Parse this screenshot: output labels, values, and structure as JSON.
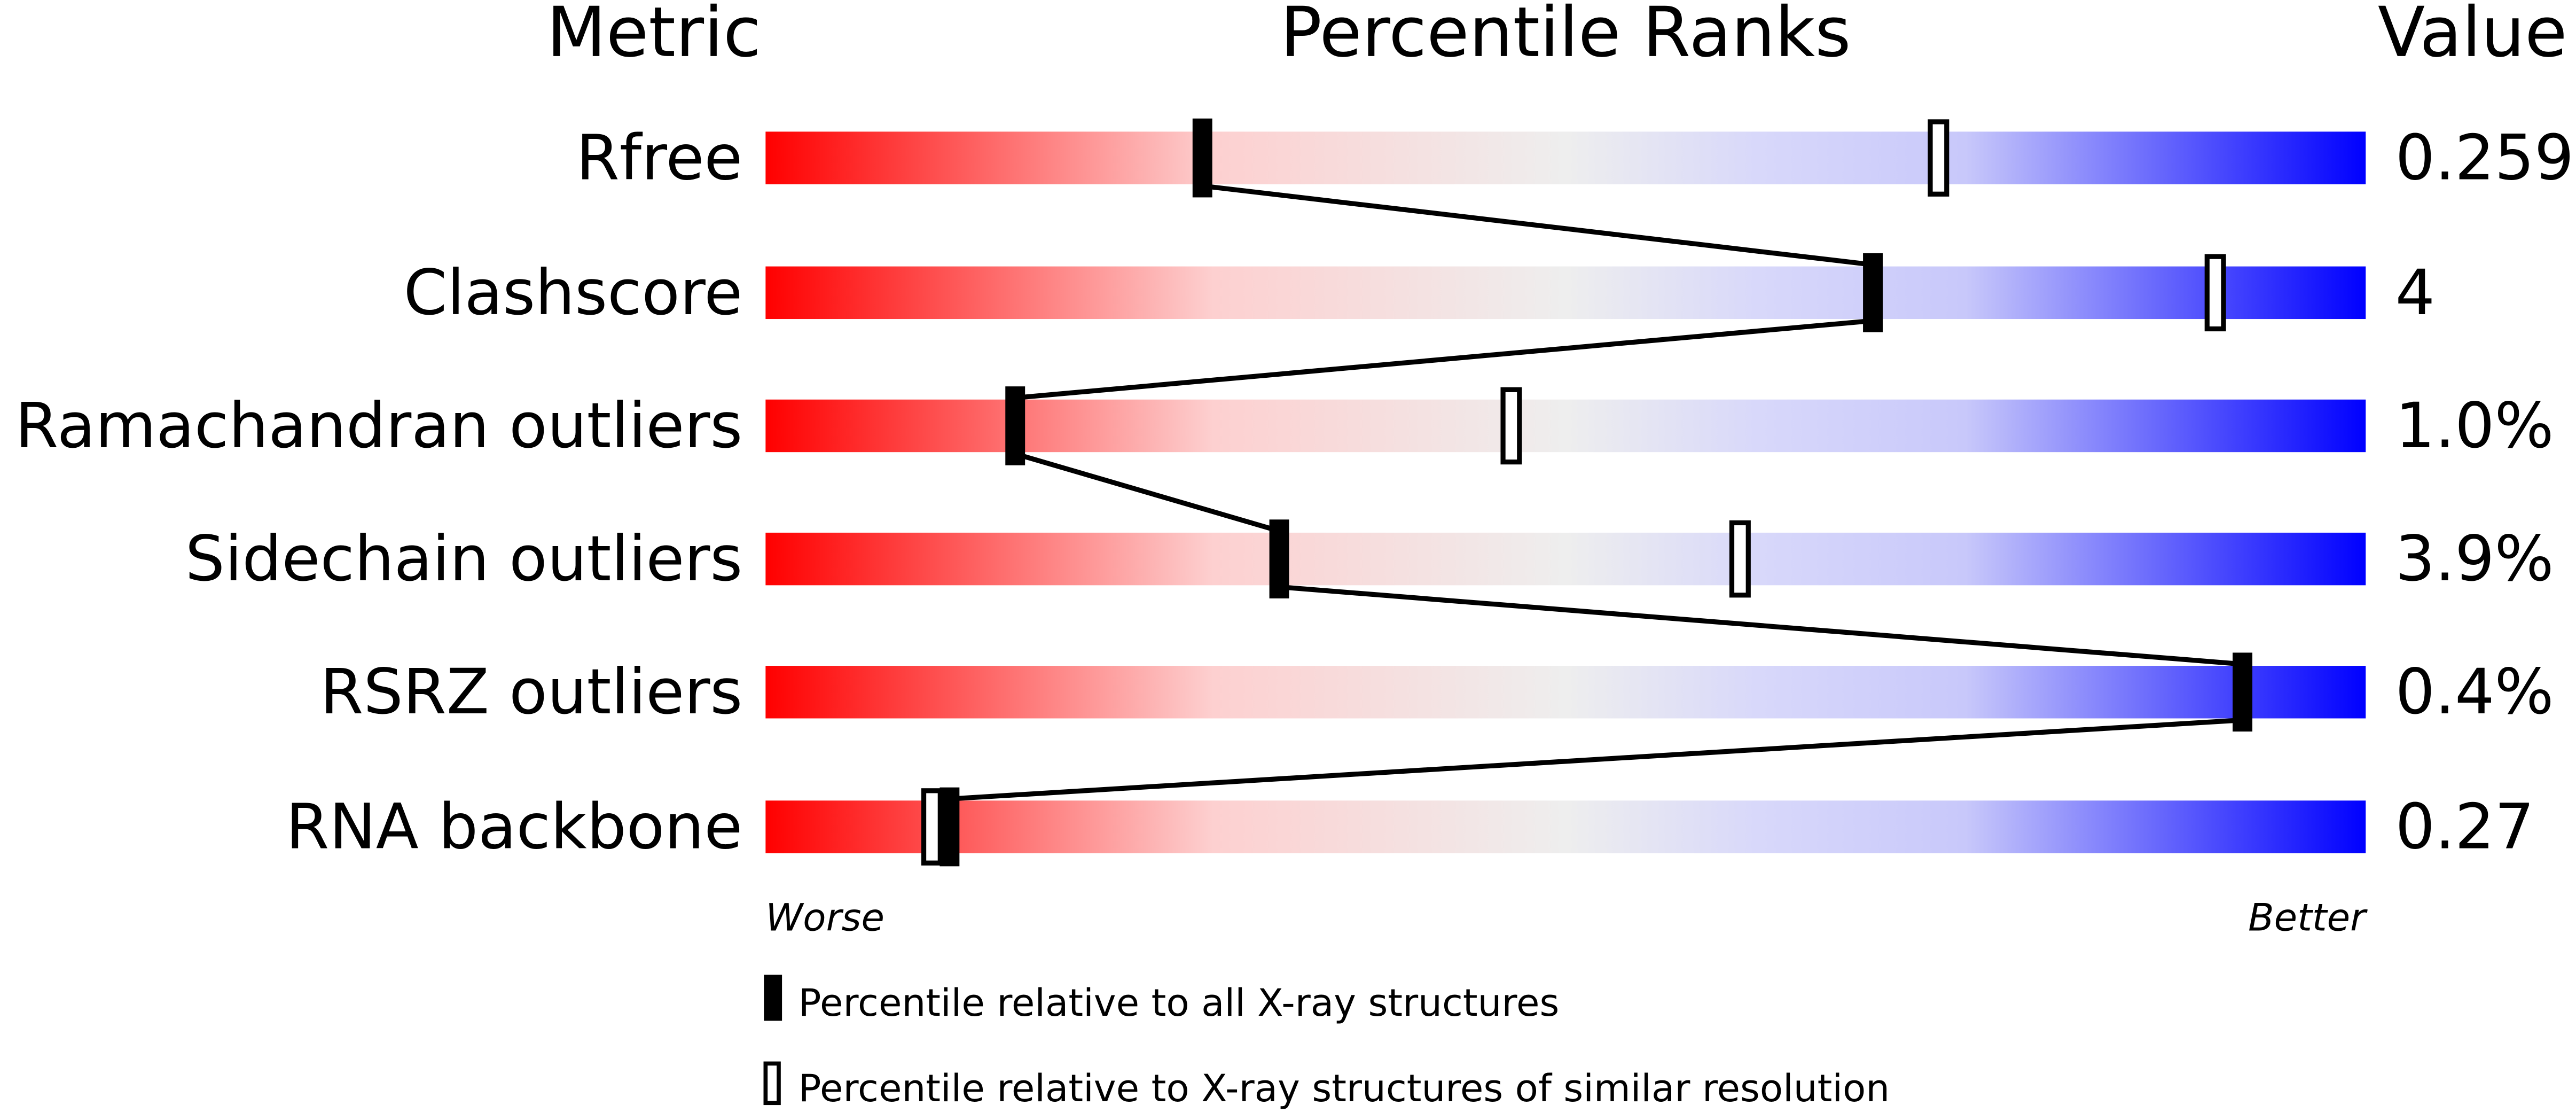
{
  "chart_data": {
    "type": "bar",
    "headers": {
      "metric": "Metric",
      "percentile": "Percentile Ranks",
      "value": "Value"
    },
    "xlim": [
      0,
      100
    ],
    "axis_labels": {
      "worse": "Worse",
      "better": "Better"
    },
    "gradient_colors": {
      "worse": "#ff0000",
      "middle": "#eeeeee",
      "better": "#0000ff"
    },
    "rows": [
      {
        "metric": "Rfree",
        "value": "0.259",
        "percentile_all": 27.3,
        "percentile_similar": 73.3
      },
      {
        "metric": "Clashscore",
        "value": "4",
        "percentile_all": 69.2,
        "percentile_similar": 90.6
      },
      {
        "metric": "Ramachandran outliers",
        "value": "1.0%",
        "percentile_all": 15.6,
        "percentile_similar": 46.6
      },
      {
        "metric": "Sidechain outliers",
        "value": "3.9%",
        "percentile_all": 32.1,
        "percentile_similar": 60.9
      },
      {
        "metric": "RSRZ outliers",
        "value": "0.4%",
        "percentile_all": 92.3,
        "percentile_similar": null
      },
      {
        "metric": "RNA backbone",
        "value": "0.27",
        "percentile_all": 11.5,
        "percentile_similar": 10.4
      }
    ],
    "legend": [
      {
        "marker": "filled",
        "label": "Percentile relative to all X-ray structures"
      },
      {
        "marker": "open",
        "label": "Percentile relative to X-ray structures of similar resolution"
      }
    ]
  }
}
